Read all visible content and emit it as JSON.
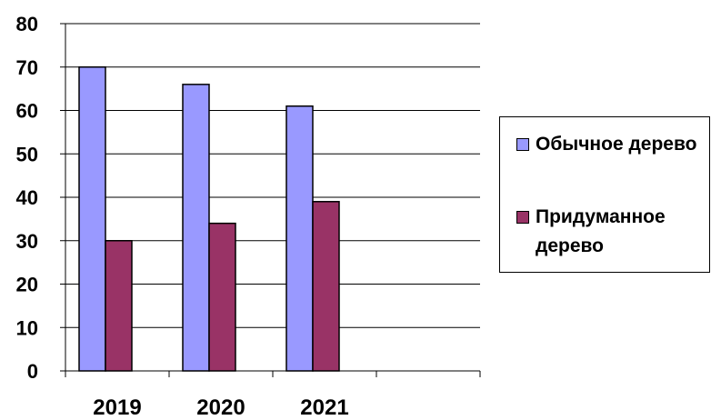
{
  "chart_data": {
    "type": "bar",
    "categories": [
      "2019",
      "2020",
      "2021"
    ],
    "series": [
      {
        "name": "Обычное дерево",
        "color": "#9999ff",
        "values": [
          70,
          66,
          61
        ]
      },
      {
        "name": "Придуманное дерево",
        "color": "#993366",
        "values": [
          30,
          34,
          39
        ]
      }
    ],
    "yticks": [
      "0",
      "10",
      "20",
      "30",
      "40",
      "50",
      "60",
      "70",
      "80"
    ],
    "ylim": [
      0,
      80
    ],
    "grid": true,
    "legend_position": "right",
    "title": "",
    "xlabel": "",
    "ylabel": ""
  }
}
